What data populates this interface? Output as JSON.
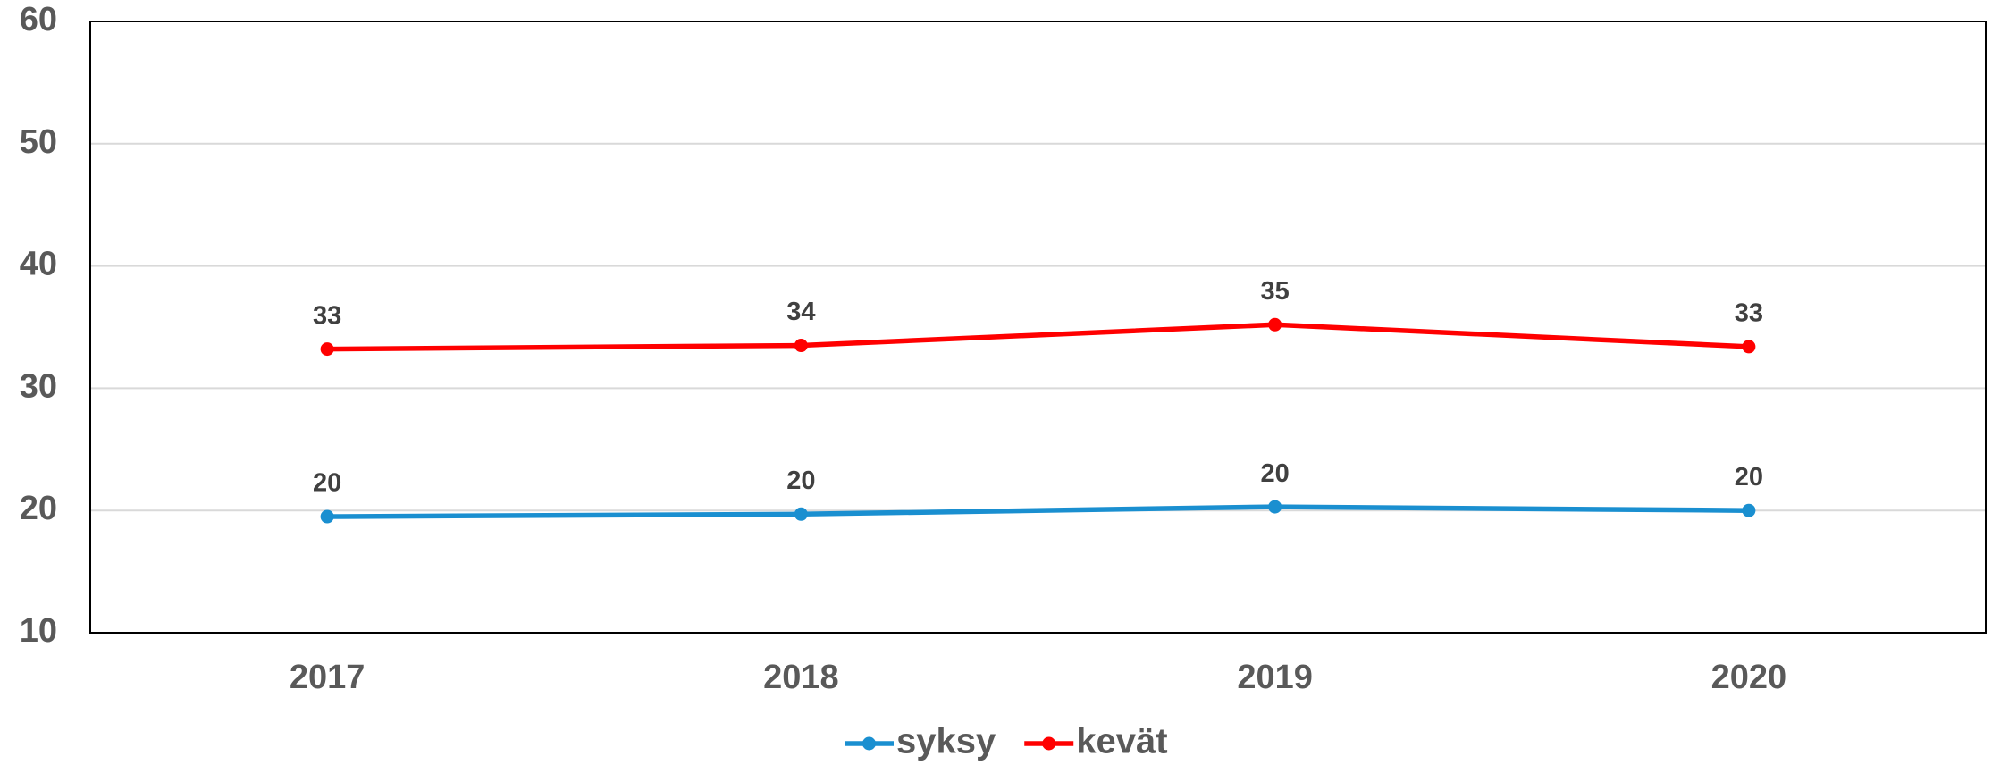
{
  "chart_data": {
    "type": "line",
    "categories": [
      "2017",
      "2018",
      "2019",
      "2020"
    ],
    "series": [
      {
        "name": "syksy",
        "color": "#1a8fd0",
        "values": [
          19.5,
          19.7,
          20.3,
          20.0
        ],
        "value_labels": [
          "20",
          "20",
          "20",
          "20"
        ]
      },
      {
        "name": "kevät",
        "color": "#ff0000",
        "values": [
          33.2,
          33.5,
          35.2,
          33.4
        ],
        "value_labels": [
          "33",
          "34",
          "35",
          "33"
        ]
      }
    ],
    "ylim": [
      10,
      60
    ],
    "yticks": [
      10,
      20,
      30,
      40,
      50,
      60
    ],
    "grid": true,
    "legend": "bottom"
  }
}
